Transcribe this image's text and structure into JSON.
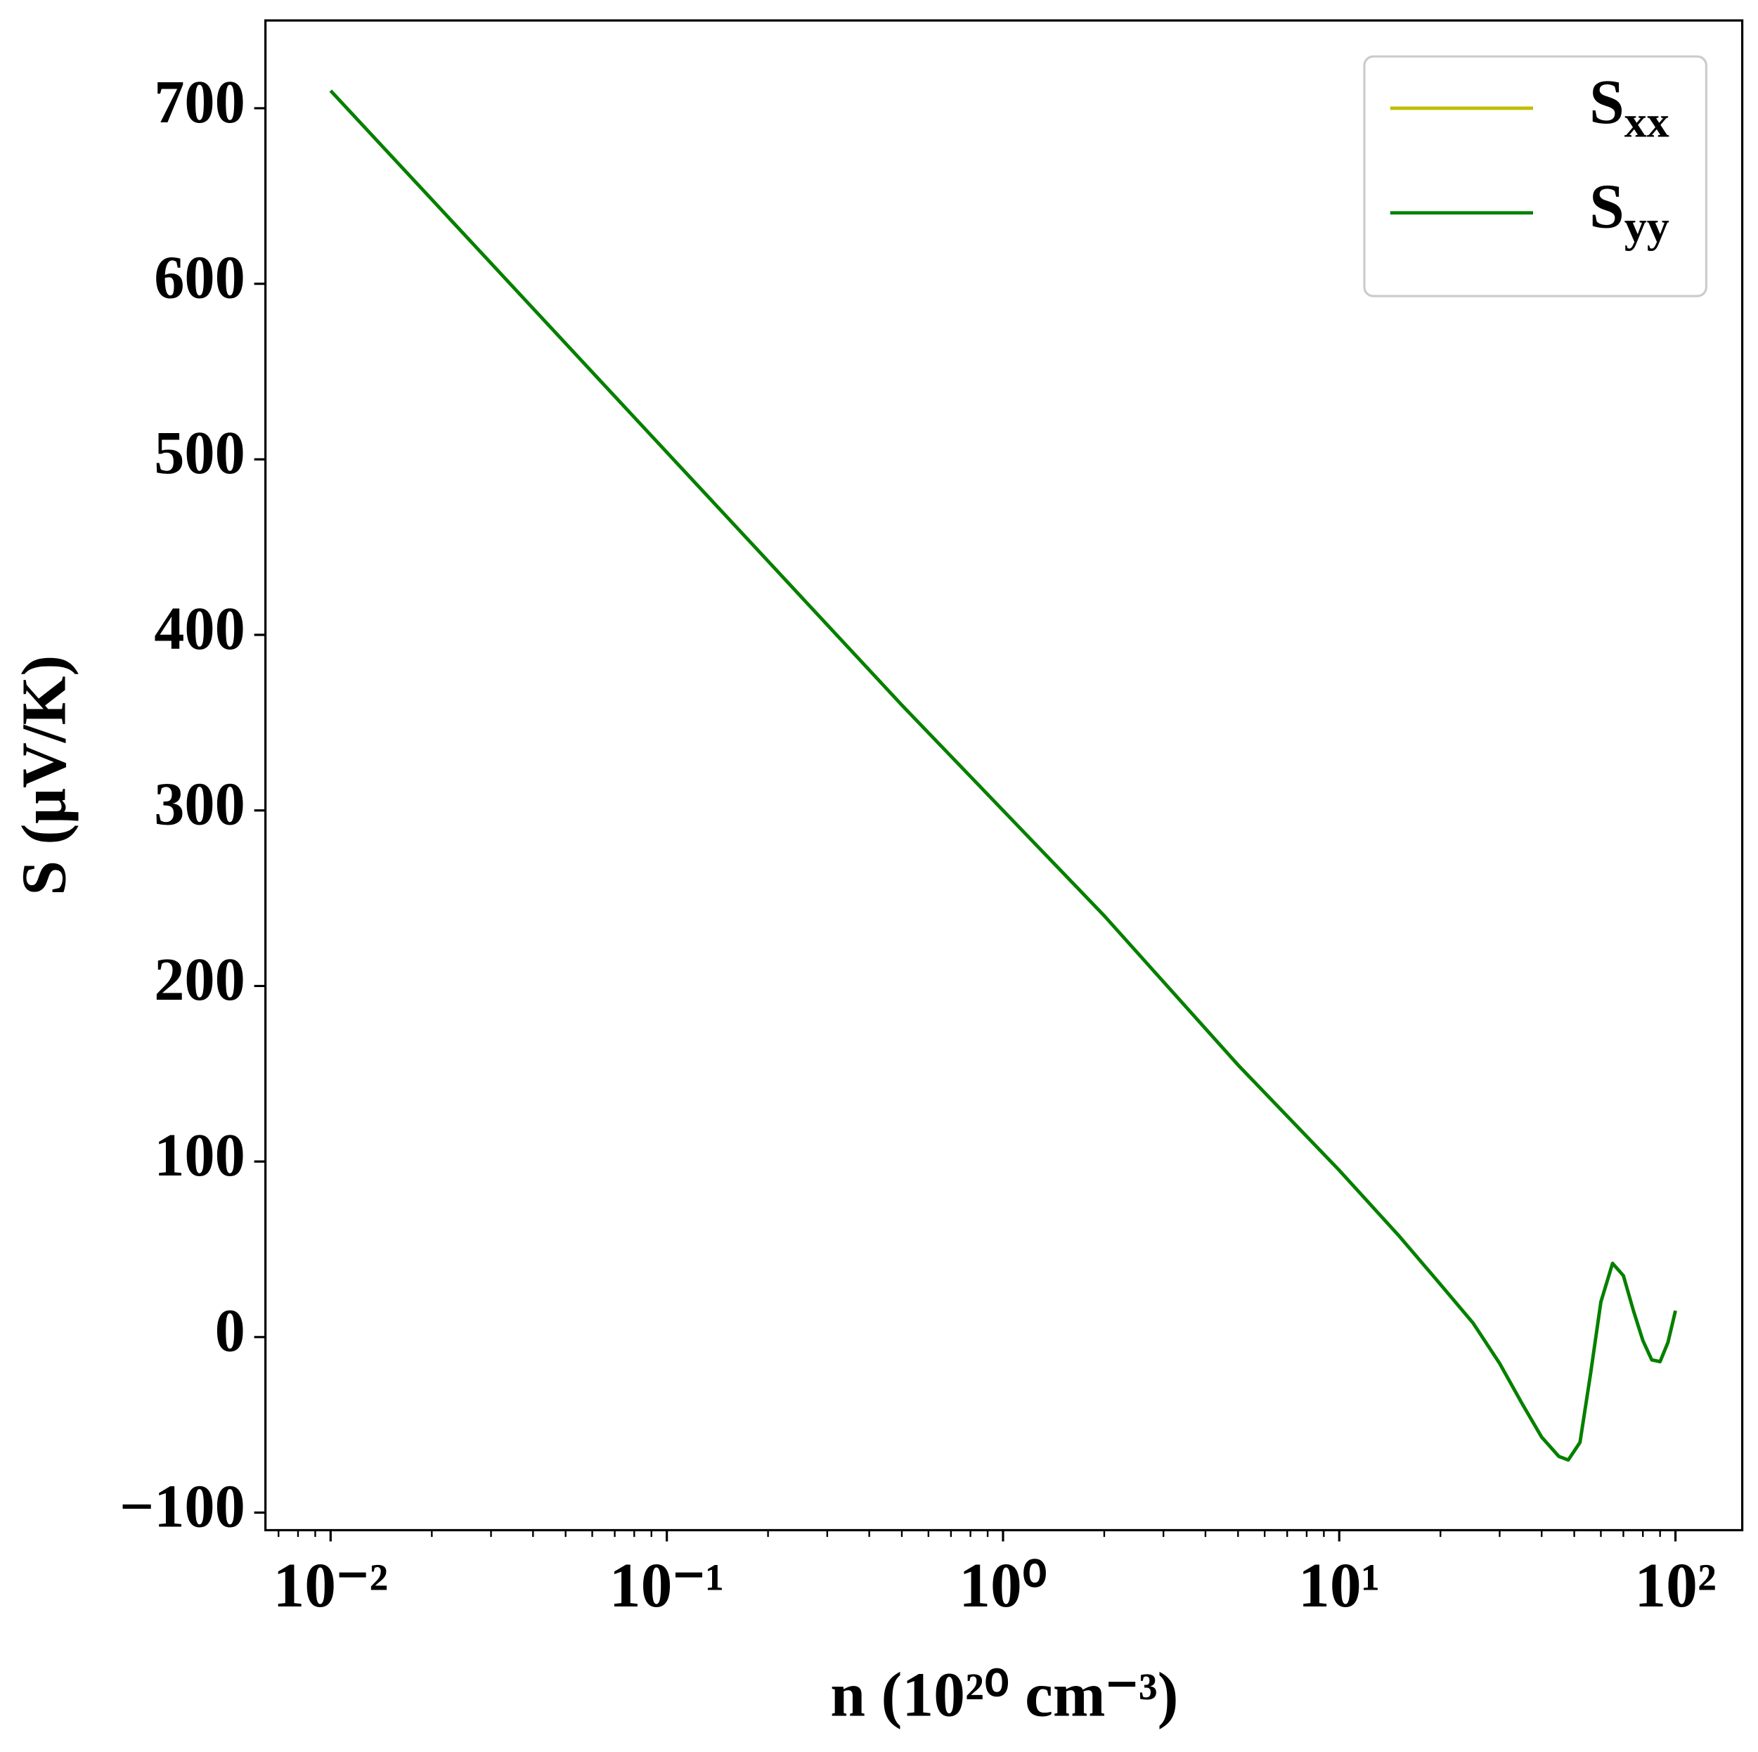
{
  "chart_data": {
    "type": "line",
    "xlabel": "n (10²⁰ cm⁻³)",
    "ylabel": "S (μV/K)",
    "xscale": "log",
    "xlim": [
      0.0064,
      158
    ],
    "ylim": [
      -110,
      750
    ],
    "xticks": [
      {
        "value": 0.01,
        "label": "10⁻²"
      },
      {
        "value": 0.1,
        "label": "10⁻¹"
      },
      {
        "value": 1,
        "label": "10⁰"
      },
      {
        "value": 10,
        "label": "10¹"
      },
      {
        "value": 100,
        "label": "10²"
      }
    ],
    "xticks_minor": [
      0.007,
      0.008,
      0.009,
      0.02,
      0.03,
      0.04,
      0.05,
      0.06,
      0.07,
      0.08,
      0.09,
      0.2,
      0.3,
      0.4,
      0.5,
      0.6,
      0.7,
      0.8,
      0.9,
      2,
      3,
      4,
      5,
      6,
      7,
      8,
      9,
      20,
      30,
      40,
      50,
      60,
      70,
      80,
      90
    ],
    "yticks": [
      {
        "value": -100,
        "label": "−100"
      },
      0,
      100,
      200,
      300,
      400,
      500,
      600,
      700
    ],
    "grid": false,
    "legend": "upper right",
    "x": [
      0.01,
      0.02,
      0.05,
      0.1,
      0.2,
      0.5,
      1,
      2,
      5,
      10,
      15,
      20,
      25,
      30,
      35,
      40,
      45,
      48,
      52,
      56,
      60,
      65,
      70,
      75,
      80,
      85,
      90,
      95,
      100
    ],
    "series": [
      {
        "name": "Sxx",
        "color": "#bfbf00",
        "values": [
          710,
          648,
          566,
          504,
          442,
          360,
          300,
          240,
          155,
          95,
          58,
          30,
          8,
          -15,
          -38,
          -57,
          -68,
          -70,
          -60,
          -20,
          20,
          42,
          35,
          15,
          -2,
          -13,
          -14,
          -3,
          15
        ]
      },
      {
        "name": "Syy",
        "color": "#008000",
        "values": [
          710,
          648,
          566,
          504,
          442,
          360,
          300,
          240,
          155,
          95,
          58,
          30,
          8,
          -15,
          -38,
          -57,
          -68,
          -70,
          -60,
          -20,
          20,
          42,
          35,
          15,
          -2,
          -13,
          -14,
          -3,
          15
        ]
      }
    ]
  }
}
